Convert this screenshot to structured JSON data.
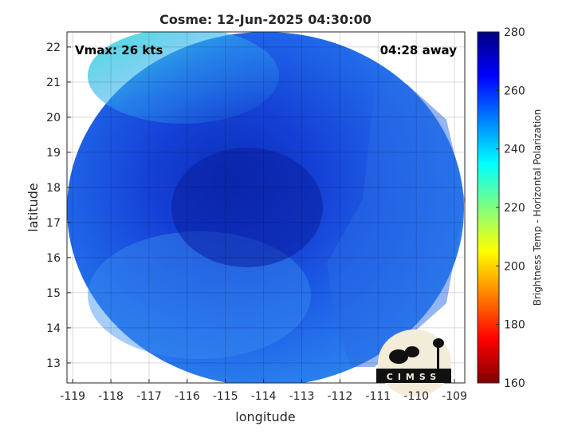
{
  "chart_data": {
    "type": "map",
    "title": "Cosme: 12-Jun-2025 04:30:00",
    "annotations": [
      "Vmax: 26 kts",
      "04:28 away"
    ],
    "xlabel": "longitude",
    "ylabel": "latitude",
    "xlim": [
      -119.15,
      -108.73
    ],
    "xticks": [
      -119,
      -118,
      -117,
      -116,
      -115,
      -114,
      -113,
      -112,
      -111,
      -110,
      -109
    ],
    "ylim": [
      12.43,
      22.43
    ],
    "yticks": [
      13,
      14,
      15,
      16,
      17,
      18,
      19,
      20,
      21,
      22
    ],
    "grid": true,
    "colorbar": {
      "label": "Brightness Temp - Horizontal Polarization",
      "lim": [
        160,
        280
      ],
      "ticks": [
        160,
        180,
        200,
        220,
        240,
        260,
        280
      ],
      "colormap": [
        "#800000",
        "#ff0000",
        "#ff8000",
        "#ffff00",
        "#80ff80",
        "#00ffff",
        "#0080ff",
        "#0000ff",
        "#000080"
      ]
    },
    "logo": "CIMSS"
  }
}
